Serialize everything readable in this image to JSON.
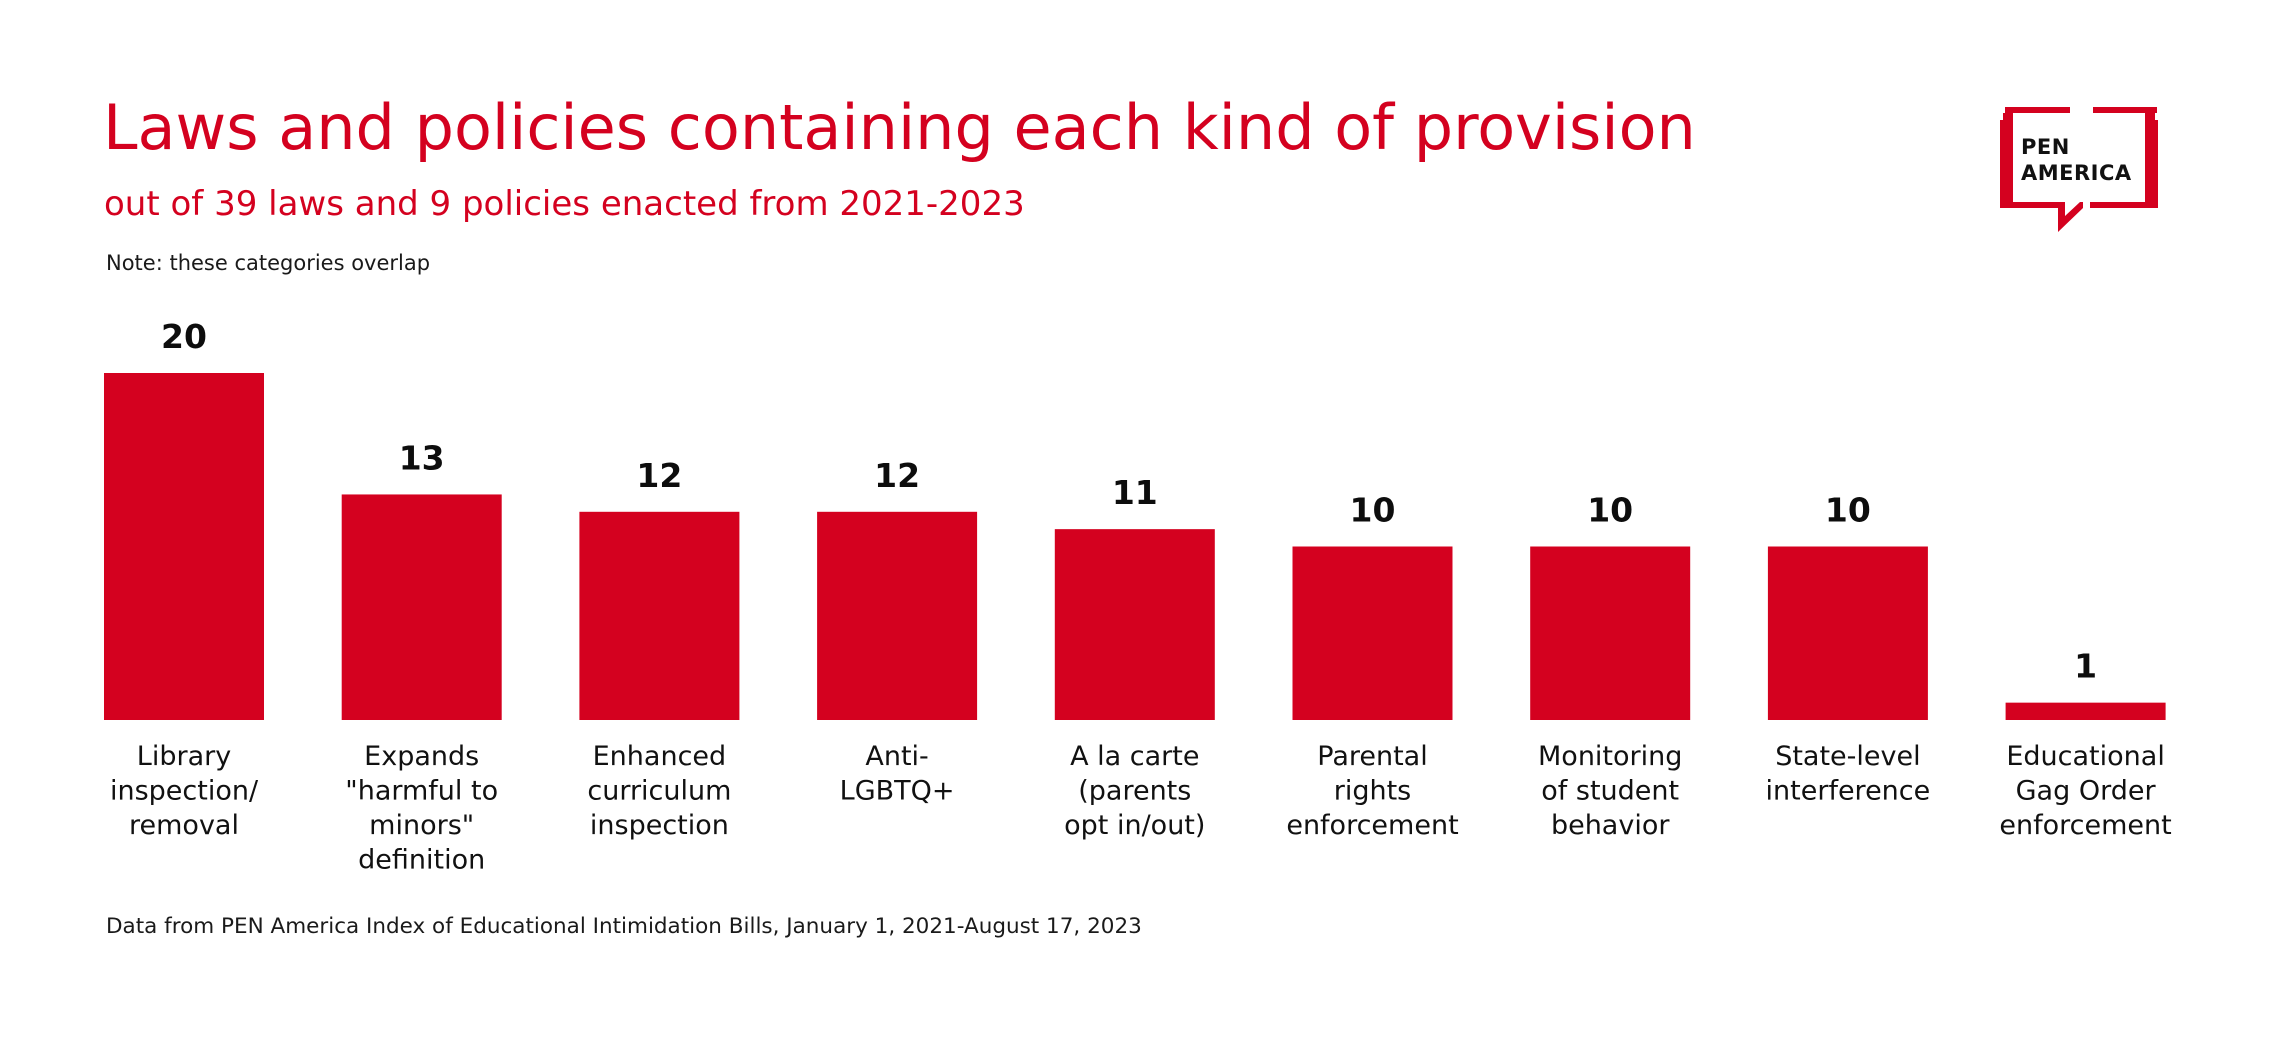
{
  "header": {
    "title": "Laws and policies containing each kind of provision",
    "subtitle": "out of 39 laws and 9 policies enacted from 2021-2023",
    "note": "Note: these categories overlap"
  },
  "footer": {
    "source": "Data from PEN America Index of Educational Intimidation Bills, January 1, 2021-August 17, 2023"
  },
  "logo": {
    "line1": "PEN",
    "line2": "AMERICA",
    "icon": "speech-bubble-icon"
  },
  "colors": {
    "accent": "#d4011f",
    "text": "#111111"
  },
  "chart_data": {
    "type": "bar",
    "title": "Laws and policies containing each kind of provision",
    "subtitle": "out of 39 laws and 9 policies enacted from 2021-2023",
    "xlabel": "",
    "ylabel": "",
    "ylim": [
      0,
      20
    ],
    "grid": false,
    "legend": "none",
    "categories": [
      [
        "Library",
        "inspection/",
        "removal"
      ],
      [
        "Expands",
        "\"harmful to",
        "minors\"",
        "definition"
      ],
      [
        "Enhanced",
        "curriculum",
        "inspection"
      ],
      [
        "Anti-",
        "LGBTQ+"
      ],
      [
        "A la carte",
        "(parents",
        "opt in/out)"
      ],
      [
        "Parental",
        "rights",
        "enforcement"
      ],
      [
        "Monitoring",
        "of student",
        "behavior"
      ],
      [
        "State-level",
        "interference"
      ],
      [
        "Educational",
        "Gag Order",
        "enforcement"
      ]
    ],
    "values": [
      20,
      13,
      12,
      12,
      11,
      10,
      10,
      10,
      1
    ],
    "bar_color": "#d4011f"
  }
}
